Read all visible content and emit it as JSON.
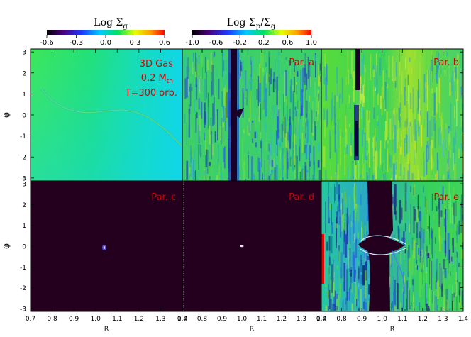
{
  "colorbars": [
    {
      "title_main": "Log Σ",
      "title_sub": "g",
      "ticks": [
        "-0.6",
        "-0.3",
        "0.0",
        "0.3",
        "0.6"
      ]
    },
    {
      "title_main": "Log Σ",
      "title_sub": "p",
      "title_slash": "/Σ",
      "title_sub2": "g",
      "ticks": [
        "-1.0",
        "-0.6",
        "-0.2",
        "0.2",
        "0.6",
        "1.0"
      ]
    }
  ],
  "panels": {
    "gas": [
      "3D Gas",
      "0.2 M",
      "th",
      "T=300 orb."
    ],
    "a": "Par. a",
    "b": "Par. b",
    "c": "Par. c",
    "d": "Par. d",
    "e": "Par. e"
  },
  "axes": {
    "ylabel": "φ",
    "xlabel": "R",
    "yticks": [
      "3",
      "2",
      "1",
      "0",
      "-1",
      "-2",
      "-3"
    ],
    "xticks": [
      "0.7",
      "0.8",
      "0.9",
      "1.0",
      "1.1",
      "1.2",
      "1.3",
      "1.4"
    ]
  },
  "chart_data": {
    "type": "heatmap",
    "layout": "2 rows x 3 columns of panels",
    "x": {
      "label": "R",
      "range": [
        0.7,
        1.4
      ]
    },
    "y": {
      "label": "φ",
      "range": [
        -3.14,
        3.14
      ]
    },
    "colorbars": [
      {
        "quantity": "Log Σ_g",
        "range": [
          -0.6,
          0.6
        ],
        "colormap": "rainbow (black-blue-green-yellow-red)"
      },
      {
        "quantity": "Log Σ_p/Σ_g",
        "range": [
          -1.0,
          1.0
        ],
        "colormap": "rainbow (black-blue-green-yellow-red)"
      }
    ],
    "panels": [
      {
        "label": "3D Gas, 0.2 M_th, T=300 orb.",
        "colorbar": "Log Σ_g",
        "dominant_value": 0.0,
        "features": "spiral wake through (1.0, 0)"
      },
      {
        "label": "Par. a",
        "colorbar": "Log Σ_p/Σ_g",
        "dominant_value": -0.3,
        "features": "dark gap at R≈0.97"
      },
      {
        "label": "Par. b",
        "colorbar": "Log Σ_p/Σ_g",
        "dominant_value": 0.1,
        "features": "narrow gap at R≈0.95"
      },
      {
        "label": "Par. c",
        "colorbar": "Log Σ_p/Σ_g",
        "dominant_value": -1.0,
        "features": "clump at (1.0, 0)"
      },
      {
        "label": "Par. d",
        "colorbar": "Log Σ_p/Σ_g",
        "dominant_value": -1.0,
        "features": "clump at (1.0, 0)"
      },
      {
        "label": "Par. e",
        "colorbar": "Log Σ_p/Σ_g",
        "dominant_value": -0.3,
        "features": "wide gap R≈0.95–1.05, horseshoe at φ≈0"
      }
    ]
  }
}
